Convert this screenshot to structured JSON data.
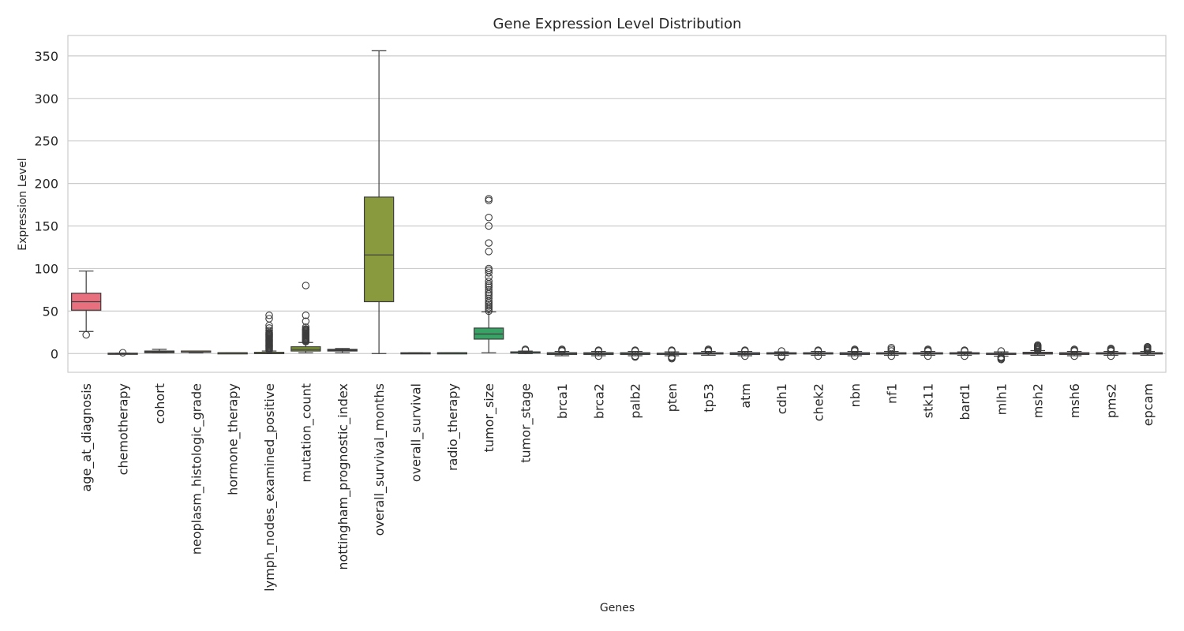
{
  "chart_data": {
    "type": "box",
    "title": "Gene Expression Level Distribution",
    "xlabel": "Genes",
    "ylabel": "Expression Level",
    "ylim": [
      -22,
      374
    ],
    "yticks": [
      0,
      50,
      100,
      150,
      200,
      250,
      300,
      350
    ],
    "grid": true,
    "categories": [
      "age_at_diagnosis",
      "chemotherapy",
      "cohort",
      "neoplasm_histologic_grade",
      "hormone_therapy",
      "lymph_nodes_examined_positive",
      "mutation_count",
      "nottingham_prognostic_index",
      "overall_survival_months",
      "overall_survival",
      "radio_therapy",
      "tumor_size",
      "tumor_stage",
      "brca1",
      "brca2",
      "palb2",
      "pten",
      "tp53",
      "atm",
      "cdh1",
      "chek2",
      "nbn",
      "nf1",
      "stk11",
      "bard1",
      "mlh1",
      "msh2",
      "msh6",
      "pms2",
      "epcam"
    ],
    "colors": [
      "#e8707e",
      "#dc7a52",
      "#c98a3e",
      "#b79434",
      "#a29c30",
      "#8f9d32",
      "#7f9a33",
      "#6f9a35",
      "#899a3e",
      "#62a33b",
      "#3fa44c",
      "#37a465",
      "#37a27b",
      "#38a08a",
      "#399e99",
      "#3b9ca6",
      "#3d99b3",
      "#3f96c1",
      "#4b90d2",
      "#5e89e2",
      "#7a80ec",
      "#9578ec",
      "#ac70e6",
      "#c069e0",
      "#d25fd4",
      "#df59c1",
      "#e55cac",
      "#e96397",
      "#ea6788",
      "#e96c7c"
    ],
    "boxes": [
      {
        "q1": 51,
        "median": 61,
        "q3": 71,
        "whisker_low": 26,
        "whisker_high": 97,
        "outliers": [
          22
        ]
      },
      {
        "q1": 0,
        "median": 0,
        "q3": 0.5,
        "whisker_low": 0,
        "whisker_high": 0.5,
        "outliers": [
          1
        ]
      },
      {
        "q1": 1,
        "median": 2,
        "q3": 3,
        "whisker_low": 1,
        "whisker_high": 5,
        "outliers": []
      },
      {
        "q1": 2,
        "median": 3,
        "q3": 3,
        "whisker_low": 1,
        "whisker_high": 3,
        "outliers": []
      },
      {
        "q1": 0,
        "median": 1,
        "q3": 1,
        "whisker_low": 0,
        "whisker_high": 1,
        "outliers": []
      },
      {
        "q1": 0,
        "median": 0,
        "q3": 1.5,
        "whisker_low": 0,
        "whisker_high": 3,
        "outliers": [
          4,
          5,
          6,
          7,
          8,
          9,
          10,
          11,
          12,
          13,
          14,
          15,
          16,
          17,
          18,
          19,
          20,
          21,
          22,
          23,
          24,
          25,
          27,
          30,
          33,
          41,
          45
        ]
      },
      {
        "q1": 3,
        "median": 5,
        "q3": 8,
        "whisker_low": 1,
        "whisker_high": 13,
        "outliers": [
          14,
          15,
          16,
          17,
          18,
          19,
          20,
          21,
          22,
          23,
          24,
          25,
          26,
          27,
          28,
          29,
          31,
          38,
          45,
          80
        ]
      },
      {
        "q1": 3,
        "median": 4,
        "q3": 5,
        "whisker_low": 1,
        "whisker_high": 6,
        "outliers": []
      },
      {
        "q1": 61,
        "median": 116,
        "q3": 184,
        "whisker_low": 0,
        "whisker_high": 356,
        "outliers": []
      },
      {
        "q1": 0,
        "median": 0,
        "q3": 1,
        "whisker_low": 0,
        "whisker_high": 1,
        "outliers": []
      },
      {
        "q1": 0,
        "median": 1,
        "q3": 1,
        "whisker_low": 0,
        "whisker_high": 1,
        "outliers": []
      },
      {
        "q1": 17,
        "median": 23,
        "q3": 30,
        "whisker_low": 1,
        "whisker_high": 49,
        "outliers": [
          50,
          52,
          54,
          56,
          58,
          60,
          62,
          65,
          68,
          70,
          72,
          75,
          78,
          80,
          82,
          85,
          90,
          95,
          98,
          100,
          120,
          130,
          150,
          160,
          180,
          182
        ]
      },
      {
        "q1": 1,
        "median": 2,
        "q3": 2,
        "whisker_low": 0,
        "whisker_high": 3,
        "outliers": [
          4,
          5
        ]
      },
      {
        "q1": -1,
        "median": 0,
        "q3": 1,
        "whisker_low": -2.5,
        "whisker_high": 2.5,
        "outliers": [
          3,
          4,
          5
        ]
      },
      {
        "q1": -1,
        "median": 0,
        "q3": 1,
        "whisker_low": -2.5,
        "whisker_high": 2.5,
        "outliers": [
          -3,
          3,
          4
        ]
      },
      {
        "q1": -1,
        "median": 0,
        "q3": 1,
        "whisker_low": -2.5,
        "whisker_high": 2.5,
        "outliers": [
          -4,
          -3,
          3,
          4
        ]
      },
      {
        "q1": -1,
        "median": 0,
        "q3": 0.5,
        "whisker_low": -2.5,
        "whisker_high": 2,
        "outliers": [
          -6,
          -5,
          -4,
          3,
          4
        ]
      },
      {
        "q1": -0.5,
        "median": 0,
        "q3": 1,
        "whisker_low": -2,
        "whisker_high": 2.5,
        "outliers": [
          3,
          4,
          5
        ]
      },
      {
        "q1": -1,
        "median": 0,
        "q3": 1,
        "whisker_low": -2.5,
        "whisker_high": 2.5,
        "outliers": [
          -3,
          3,
          4
        ]
      },
      {
        "q1": -0.5,
        "median": 0,
        "q3": 1,
        "whisker_low": -2,
        "whisker_high": 2,
        "outliers": [
          -4,
          -3,
          3
        ]
      },
      {
        "q1": -0.5,
        "median": 0,
        "q3": 1,
        "whisker_low": -2,
        "whisker_high": 2.5,
        "outliers": [
          -3,
          3,
          4
        ]
      },
      {
        "q1": -1,
        "median": 0,
        "q3": 1,
        "whisker_low": -2.5,
        "whisker_high": 2.5,
        "outliers": [
          -3,
          3,
          4,
          5
        ]
      },
      {
        "q1": -0.5,
        "median": 0,
        "q3": 1,
        "whisker_low": -2,
        "whisker_high": 2.5,
        "outliers": [
          -3,
          3,
          5,
          7
        ]
      },
      {
        "q1": -0.5,
        "median": 0,
        "q3": 1,
        "whisker_low": -2,
        "whisker_high": 2.5,
        "outliers": [
          -3,
          3,
          4,
          5
        ]
      },
      {
        "q1": -0.5,
        "median": 0,
        "q3": 1,
        "whisker_low": -2,
        "whisker_high": 2,
        "outliers": [
          -3,
          3,
          4
        ]
      },
      {
        "q1": -1,
        "median": 0,
        "q3": 0.5,
        "whisker_low": -3,
        "whisker_high": 2,
        "outliers": [
          -7,
          -6,
          -5,
          -4,
          3
        ]
      },
      {
        "q1": -0.5,
        "median": 0.5,
        "q3": 1.5,
        "whisker_low": -2,
        "whisker_high": 3.5,
        "outliers": [
          4,
          5,
          6,
          7,
          8,
          9,
          10
        ]
      },
      {
        "q1": -1,
        "median": 0,
        "q3": 1,
        "whisker_low": -2.5,
        "whisker_high": 2.5,
        "outliers": [
          -3,
          3,
          4,
          5
        ]
      },
      {
        "q1": -0.5,
        "median": 0,
        "q3": 1,
        "whisker_low": -2,
        "whisker_high": 2.5,
        "outliers": [
          -3,
          3,
          4,
          5,
          6
        ]
      },
      {
        "q1": -0.5,
        "median": 0.5,
        "q3": 1,
        "whisker_low": -2,
        "whisker_high": 2.5,
        "outliers": [
          3,
          4,
          5,
          6,
          7,
          8
        ]
      }
    ]
  }
}
